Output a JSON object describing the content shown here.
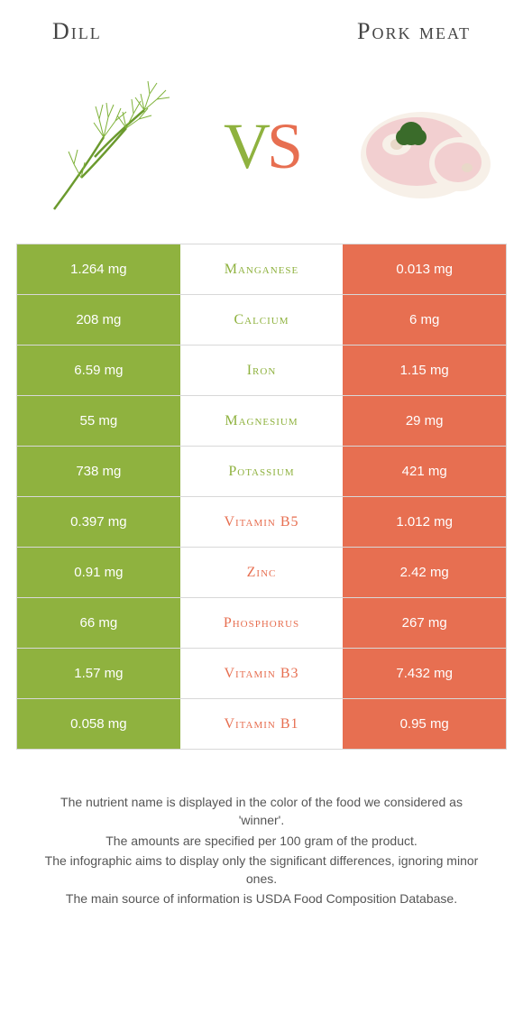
{
  "header": {
    "left": "Dill",
    "right": "Pork meat"
  },
  "vs": {
    "v": "V",
    "s": "S"
  },
  "colors": {
    "left_bg": "#8fb23f",
    "right_bg": "#e76f51",
    "left_text": "#8fb23f",
    "right_text": "#e76f51",
    "border": "#d8d8d8"
  },
  "rows": [
    {
      "nutrient": "Manganese",
      "left": "1.264 mg",
      "right": "0.013 mg",
      "winner": "left"
    },
    {
      "nutrient": "Calcium",
      "left": "208 mg",
      "right": "6 mg",
      "winner": "left"
    },
    {
      "nutrient": "Iron",
      "left": "6.59 mg",
      "right": "1.15 mg",
      "winner": "left"
    },
    {
      "nutrient": "Magnesium",
      "left": "55 mg",
      "right": "29 mg",
      "winner": "left"
    },
    {
      "nutrient": "Potassium",
      "left": "738 mg",
      "right": "421 mg",
      "winner": "left"
    },
    {
      "nutrient": "Vitamin B5",
      "left": "0.397 mg",
      "right": "1.012 mg",
      "winner": "right"
    },
    {
      "nutrient": "Zinc",
      "left": "0.91 mg",
      "right": "2.42 mg",
      "winner": "right"
    },
    {
      "nutrient": "Phosphorus",
      "left": "66 mg",
      "right": "267 mg",
      "winner": "right"
    },
    {
      "nutrient": "Vitamin B3",
      "left": "1.57 mg",
      "right": "7.432 mg",
      "winner": "right"
    },
    {
      "nutrient": "Vitamin B1",
      "left": "0.058 mg",
      "right": "0.95 mg",
      "winner": "right"
    }
  ],
  "footer": {
    "line1": "The nutrient name is displayed in the color of the food we considered as 'winner'.",
    "line2": "The amounts are specified per 100 gram of the product.",
    "line3": "The infographic aims to display only the significant differences, ignoring minor ones.",
    "line4": "The main source of information is USDA Food Composition Database."
  }
}
